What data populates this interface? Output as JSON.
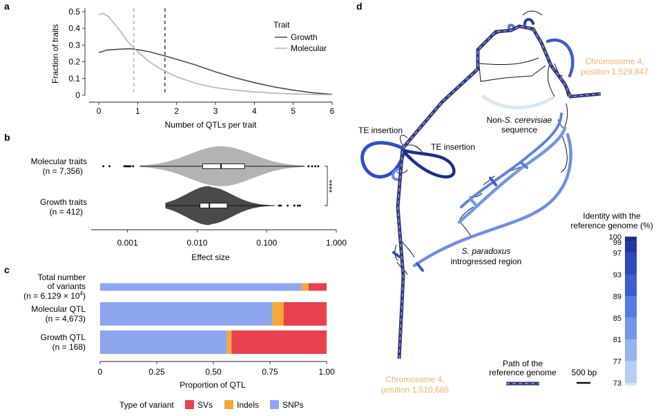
{
  "panels": {
    "a": {
      "letter": "a",
      "legend_title": "Trait",
      "colors": {
        "Growth": "#4a4a4a",
        "Molecular": "#b3b3b3"
      },
      "chart_data": {
        "type": "line",
        "xlabel": "Number of QTLs per trait",
        "ylabel": "Fraction of traits",
        "xlim": [
          -0.25,
          6.0
        ],
        "ylim": [
          0,
          0.52
        ],
        "xticks": [
          "0",
          "1",
          "2",
          "3",
          "4",
          "5",
          "6"
        ],
        "yticks": [
          "0",
          "0.1",
          "0.2",
          "0.3",
          "0.4",
          "0.5"
        ],
        "legend_position": "top-right",
        "series": [
          {
            "name": "Growth",
            "x": [
              0,
              0.2,
              0.5,
              0.8,
              1.0,
              1.3,
              1.7,
              2.0,
              2.5,
              3.0,
              3.5,
              4.0,
              4.5,
              5.0,
              5.5,
              6.0
            ],
            "y": [
              0.255,
              0.27,
              0.275,
              0.278,
              0.272,
              0.26,
              0.235,
              0.215,
              0.18,
              0.14,
              0.105,
              0.075,
              0.05,
              0.03,
              0.015,
              0.005
            ]
          },
          {
            "name": "Molecular",
            "x": [
              0,
              0.1,
              0.25,
              0.5,
              0.75,
              1.0,
              1.3,
              1.6,
              2.0,
              2.5,
              3.0,
              3.5,
              4.0,
              4.5,
              5.0,
              5.5,
              6.0
            ],
            "y": [
              0.48,
              0.49,
              0.47,
              0.4,
              0.32,
              0.26,
              0.2,
              0.155,
              0.11,
              0.07,
              0.045,
              0.03,
              0.02,
              0.012,
              0.008,
              0.005,
              0.003
            ]
          }
        ],
        "vlines": [
          {
            "series": "Molecular",
            "x": 0.9,
            "dash": true
          },
          {
            "series": "Growth",
            "x": 1.7,
            "dash": true
          }
        ]
      }
    },
    "b": {
      "letter": "b",
      "colors": {
        "Molecular traits": "#b3b3b3",
        "Growth traits": "#4a4a4a"
      },
      "chart_data": {
        "type": "violin",
        "xlabel": "Effect size",
        "xscale": "log",
        "xlim": [
          0.0003,
          1.0
        ],
        "xticks": [
          {
            "value": 0.001,
            "label": "0.001"
          },
          {
            "value": 0.01,
            "label": "0.010"
          },
          {
            "value": 0.1,
            "label": "0.100"
          },
          {
            "value": 1.0,
            "label": "1.000"
          }
        ],
        "significance": "****",
        "groups": [
          {
            "name": "Molecular traits",
            "n_label": "(n = 7,356)",
            "q1": 0.012,
            "median": 0.022,
            "q3": 0.048,
            "whisker_low": 0.0015,
            "whisker_high": 0.35,
            "outliers": [
              0.00045,
              0.00055,
              0.0009,
              0.00095,
              0.001,
              0.00105,
              0.0011,
              0.0012,
              0.4,
              0.45,
              0.5,
              0.55
            ]
          },
          {
            "name": "Growth traits",
            "n_label": "(n = 412)",
            "q1": 0.011,
            "median": 0.015,
            "q3": 0.027,
            "whisker_low": 0.0035,
            "whisker_high": 0.13,
            "outliers": [
              0.15,
              0.16,
              0.2,
              0.25,
              0.28,
              0.3
            ]
          }
        ]
      }
    },
    "c": {
      "letter": "c",
      "colors": {
        "SVs": "#e8414e",
        "Indels": "#f5a835",
        "SNPs": "#8ea6ef"
      },
      "chart_data": {
        "type": "bar",
        "orientation": "horizontal",
        "stacked": true,
        "xlabel": "Proportion of QTL",
        "xlim": [
          0,
          1.0
        ],
        "xticks": [
          "0",
          "0.25",
          "0.50",
          "0.75",
          "1.00"
        ],
        "legend_title": "Type of variant",
        "legend_position": "bottom",
        "categories": [
          {
            "label_lines": [
              "Total number",
              "of variants"
            ],
            "n_label": "(n = 6.129 × 10",
            "n_exp": "4",
            "n_close": ")"
          },
          {
            "label_lines": [
              "Molecular QTL"
            ],
            "n_label": "(n = 4,673)"
          },
          {
            "label_lines": [
              "Growth QTL"
            ],
            "n_label": "(n = 168)"
          }
        ],
        "series": [
          {
            "name": "SNPs",
            "values": [
              0.89,
              0.76,
              0.56
            ]
          },
          {
            "name": "Indels",
            "values": [
              0.03,
              0.05,
              0.02
            ]
          },
          {
            "name": "SVs",
            "values": [
              0.08,
              0.19,
              0.42
            ]
          }
        ]
      }
    },
    "d": {
      "letter": "d",
      "annotations": {
        "chr_top": [
          "Chromosome 4,",
          "position 1,529,847"
        ],
        "chr_bottom": [
          "Chromosome 4,",
          "position 1,510,685"
        ],
        "non_sc": [
          "Non-",
          "S. cerevisiae",
          "sequence"
        ],
        "te1": "TE insertion",
        "te2": "TE insertion",
        "spar": [
          "S. paradoxus",
          "introgressed region"
        ],
        "path_label": [
          "Path of the",
          "reference genome"
        ],
        "scale": "500 bp"
      },
      "identity_legend": {
        "title": [
          "Identity with the",
          "reference genome (%)"
        ],
        "ticks": [
          "100",
          "99",
          "97",
          "93",
          "89",
          "85",
          "81",
          "77",
          "73"
        ],
        "colors": [
          "#1c2f8a",
          "#24399e",
          "#2d49bb",
          "#3d5dd0",
          "#557ae0",
          "#7396ea",
          "#93b4f1",
          "#b6cef6",
          "#d6e8fb"
        ]
      },
      "colors": {
        "accent_orange": "#f2b069",
        "path_dash": "#f5a835",
        "edge": "#111111"
      }
    }
  }
}
